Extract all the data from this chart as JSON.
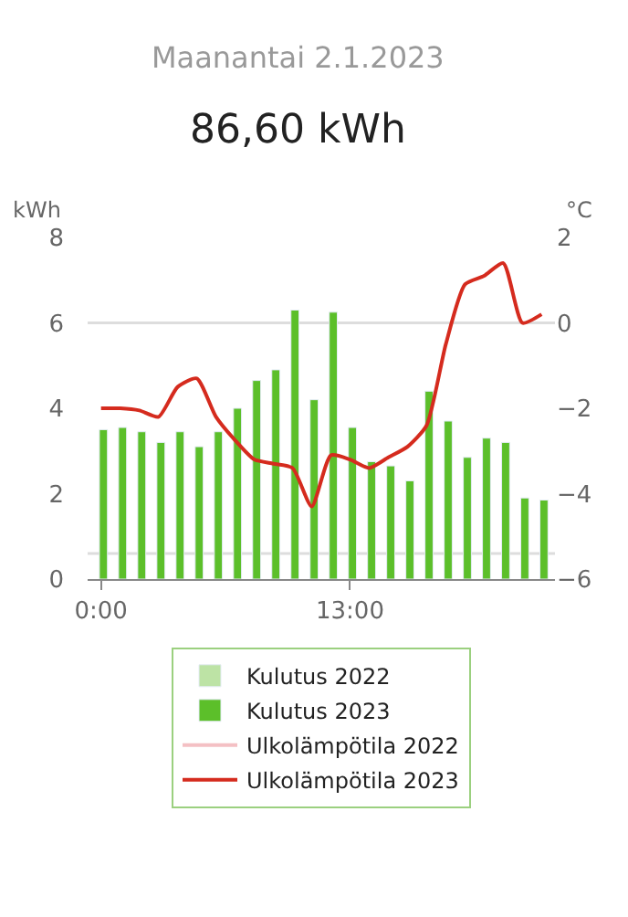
{
  "chart_data": {
    "type": "bar",
    "title": "Maanantai 2.1.2023",
    "subtitle": "86,60 kWh",
    "ylabel": "kWh",
    "y2label": "°C",
    "x": [
      0,
      1,
      2,
      3,
      4,
      5,
      6,
      7,
      8,
      9,
      10,
      11,
      12,
      13,
      14,
      15,
      16,
      17,
      18,
      19,
      20,
      21,
      22,
      23
    ],
    "xlim": [
      -0.7,
      23.7
    ],
    "xticks": [
      {
        "value": 0,
        "label": "0:00"
      },
      {
        "value": 13,
        "label": "13:00"
      }
    ],
    "ylim": [
      0,
      8
    ],
    "yticks": [
      0,
      2,
      4,
      6,
      8
    ],
    "y2lim": [
      -6,
      2
    ],
    "y2ticks": [
      -6,
      -4,
      -2,
      0,
      2
    ],
    "series": [
      {
        "name": "Kulutus 2022",
        "color": "#bde3a5",
        "values": [
          null,
          null,
          null,
          null,
          null,
          null,
          null,
          null,
          null,
          null,
          null,
          null,
          null,
          null,
          null,
          null,
          null,
          null,
          null,
          null,
          null,
          null,
          null,
          null
        ]
      },
      {
        "name": "Kulutus 2023",
        "color": "#5cbf2a",
        "values": [
          3.5,
          3.55,
          3.45,
          3.2,
          3.45,
          3.1,
          3.45,
          4.0,
          4.65,
          4.9,
          6.3,
          4.2,
          6.25,
          3.55,
          2.75,
          2.65,
          2.3,
          4.4,
          3.7,
          2.85,
          3.3,
          3.2,
          1.9,
          1.85
        ]
      },
      {
        "name": "Ulkolämpötila 2022",
        "type": "line",
        "axis": "y2",
        "color": "#f4c0c4",
        "values": [
          null,
          null,
          null,
          null,
          null,
          null,
          null,
          null,
          null,
          null,
          null,
          null,
          null,
          null,
          null,
          null,
          null,
          null,
          null,
          null,
          null,
          null,
          null,
          null
        ]
      },
      {
        "name": "Ulkolämpötila 2023",
        "type": "line",
        "axis": "y2",
        "color": "#d52b1e",
        "values": [
          -2.0,
          -2.0,
          -2.05,
          -2.2,
          -1.5,
          -1.3,
          -2.2,
          -2.75,
          -3.2,
          -3.3,
          -3.4,
          -4.3,
          -3.1,
          -3.2,
          -3.4,
          -3.15,
          -2.9,
          -2.4,
          -0.5,
          0.9,
          1.1,
          1.4,
          0.0,
          0.2
        ]
      }
    ],
    "ref_lines": [
      {
        "axis": "y2",
        "value": 0,
        "color": "#dddddd"
      },
      {
        "axis": "y",
        "value": 0.6,
        "color": "#dddddd"
      }
    ],
    "grid": false,
    "legend": "bottom",
    "marker": "none",
    "line_style": "solid"
  }
}
